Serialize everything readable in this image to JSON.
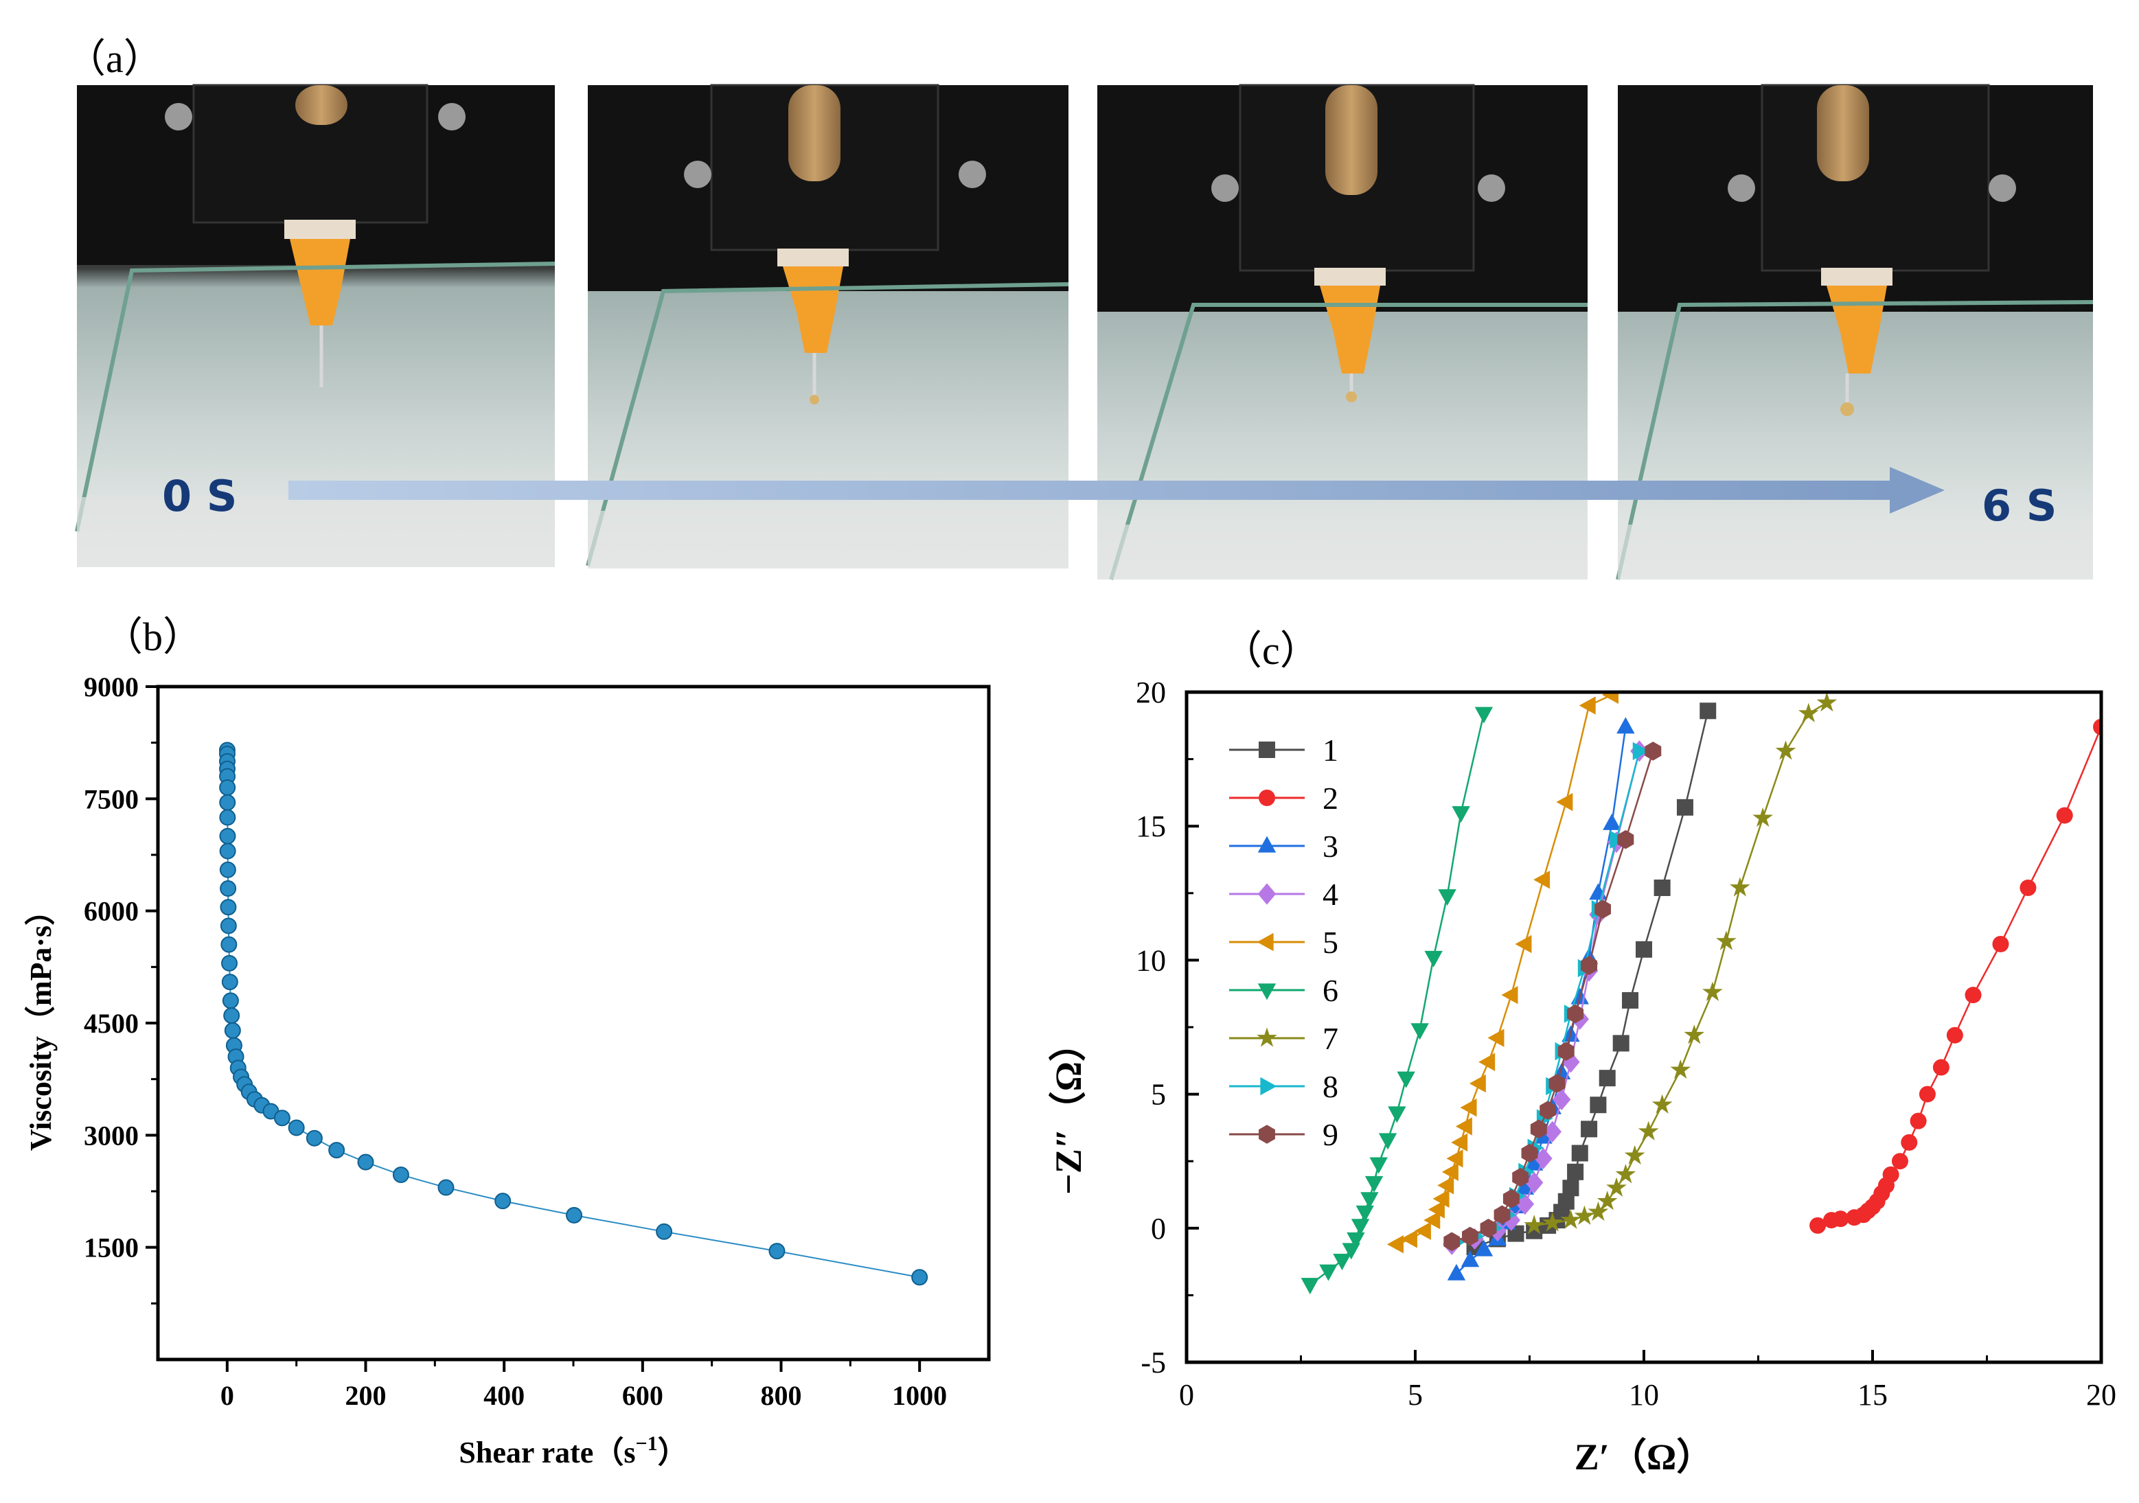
{
  "panel_labels": {
    "a": "（a）",
    "b": "（b）",
    "c": "（c）"
  },
  "photo_sequence": {
    "start_label": "0 S",
    "end_label": "6 S",
    "frame_count": 4,
    "arrow_color": "#9fb6d8",
    "label_color": "#163a78"
  },
  "chart_data": [
    {
      "id": "b",
      "type": "scatter",
      "title": "",
      "xlabel": "Shear rate（s",
      "xlabel_sup": "−1",
      "xlabel_close": "）",
      "ylabel": "Viscosity（mPa·s）",
      "xlim": [
        -100,
        1100
      ],
      "ylim": [
        0,
        9000
      ],
      "xticks": [
        0,
        200,
        400,
        600,
        800,
        1000
      ],
      "yticks": [
        1500,
        3000,
        4500,
        6000,
        7500,
        9000
      ],
      "marker_color": "#2a8cc4",
      "series": [
        {
          "name": "viscosity",
          "x": [
            0.1,
            0.13,
            0.16,
            0.2,
            0.25,
            0.32,
            0.4,
            0.5,
            0.63,
            0.79,
            1,
            1.26,
            1.58,
            2,
            2.51,
            3.16,
            3.98,
            5.01,
            6.31,
            7.94,
            10,
            12.6,
            15.8,
            20,
            25.1,
            31.6,
            39.8,
            50.1,
            63.1,
            79.4,
            100,
            126,
            158,
            200,
            251,
            316,
            398,
            501,
            631,
            794,
            1000
          ],
          "y": [
            8150,
            8100,
            8000,
            7900,
            7800,
            7650,
            7450,
            7250,
            7000,
            6800,
            6550,
            6300,
            6050,
            5800,
            5550,
            5300,
            5050,
            4800,
            4600,
            4400,
            4200,
            4050,
            3900,
            3780,
            3680,
            3580,
            3480,
            3400,
            3320,
            3230,
            3100,
            2960,
            2800,
            2640,
            2470,
            2300,
            2120,
            1930,
            1710,
            1450,
            1100
          ]
        }
      ]
    },
    {
      "id": "c",
      "type": "line",
      "title": "",
      "xlabel": "Z′（Ω）",
      "ylabel": "−Z″（Ω）",
      "xlim": [
        0,
        20
      ],
      "ylim": [
        -5,
        20
      ],
      "xticks": [
        0,
        5,
        10,
        15,
        20
      ],
      "yticks": [
        -5,
        0,
        5,
        10,
        15,
        20
      ],
      "legend_position": "top-left",
      "series": [
        {
          "name": "1",
          "color": "#4d4d4d",
          "marker": "square",
          "x": [
            6.3,
            6.8,
            7.2,
            7.6,
            7.9,
            8.1,
            8.2,
            8.3,
            8.4,
            8.5,
            8.6,
            8.8,
            9.0,
            9.2,
            9.5,
            9.7,
            10.0,
            10.4,
            10.9,
            11.4
          ],
          "y": [
            -0.7,
            -0.4,
            -0.2,
            -0.1,
            0.1,
            0.3,
            0.6,
            1.0,
            1.5,
            2.1,
            2.8,
            3.7,
            4.6,
            5.6,
            6.9,
            8.5,
            10.4,
            12.7,
            15.7,
            19.3
          ]
        },
        {
          "name": "2",
          "color": "#ee2a2a",
          "marker": "circle",
          "x": [
            13.8,
            14.1,
            14.3,
            14.6,
            14.8,
            14.9,
            15.0,
            15.1,
            15.2,
            15.3,
            15.4,
            15.6,
            15.8,
            16.0,
            16.2,
            16.5,
            16.8,
            17.2,
            17.8,
            18.4,
            19.2,
            20.0
          ],
          "y": [
            0.1,
            0.3,
            0.35,
            0.4,
            0.5,
            0.65,
            0.8,
            1.0,
            1.3,
            1.6,
            2.0,
            2.5,
            3.2,
            4.0,
            5.0,
            6.0,
            7.2,
            8.7,
            10.6,
            12.7,
            15.4,
            18.7
          ]
        },
        {
          "name": "3",
          "color": "#1f6fe0",
          "marker": "triangle-up",
          "x": [
            5.9,
            6.2,
            6.5,
            6.8,
            7.0,
            7.2,
            7.4,
            7.6,
            7.8,
            8.0,
            8.2,
            8.4,
            8.6,
            8.8,
            9.0,
            9.3,
            9.6
          ],
          "y": [
            -1.7,
            -1.2,
            -0.8,
            -0.4,
            0.2,
            0.8,
            1.5,
            2.4,
            3.4,
            4.5,
            5.8,
            7.2,
            8.6,
            10.1,
            12.5,
            15.1,
            18.7
          ]
        },
        {
          "name": "4",
          "color": "#b778e6",
          "marker": "diamond",
          "x": [
            5.8,
            6.3,
            6.8,
            7.1,
            7.4,
            7.6,
            7.8,
            8.0,
            8.2,
            8.4,
            8.6,
            8.8,
            9.0,
            9.4,
            9.9
          ],
          "y": [
            -0.6,
            -0.4,
            -0.1,
            0.3,
            0.9,
            1.7,
            2.6,
            3.6,
            4.8,
            6.2,
            7.8,
            9.6,
            11.7,
            14.4,
            17.8
          ]
        },
        {
          "name": "5",
          "color": "#d98e06",
          "marker": "triangle-left",
          "x": [
            4.6,
            4.9,
            5.2,
            5.4,
            5.5,
            5.6,
            5.7,
            5.8,
            5.9,
            6.0,
            6.1,
            6.2,
            6.4,
            6.6,
            6.8,
            7.1,
            7.4,
            7.8,
            8.3,
            8.8,
            9.3
          ],
          "y": [
            -0.6,
            -0.4,
            -0.1,
            0.3,
            0.7,
            1.1,
            1.6,
            2.1,
            2.6,
            3.2,
            3.8,
            4.5,
            5.4,
            6.2,
            7.1,
            8.7,
            10.6,
            13.0,
            15.9,
            19.5,
            19.9
          ]
        },
        {
          "name": "6",
          "color": "#12a870",
          "marker": "triangle-down",
          "x": [
            2.7,
            3.1,
            3.4,
            3.6,
            3.7,
            3.8,
            3.9,
            4.0,
            4.1,
            4.2,
            4.4,
            4.6,
            4.8,
            5.1,
            5.4,
            5.7,
            6.0,
            6.5
          ],
          "y": [
            -2.1,
            -1.6,
            -1.2,
            -0.8,
            -0.4,
            0.1,
            0.6,
            1.1,
            1.7,
            2.4,
            3.3,
            4.3,
            5.6,
            7.4,
            10.1,
            12.4,
            15.5,
            19.2
          ]
        },
        {
          "name": "7",
          "color": "#8a8a1a",
          "marker": "star",
          "x": [
            7.6,
            8.0,
            8.4,
            8.7,
            9.0,
            9.2,
            9.4,
            9.6,
            9.8,
            10.1,
            10.4,
            10.8,
            11.1,
            11.5,
            11.8,
            12.1,
            12.6,
            13.1,
            13.6,
            14.0
          ],
          "y": [
            0.1,
            0.2,
            0.3,
            0.45,
            0.6,
            1.0,
            1.5,
            2.0,
            2.7,
            3.6,
            4.6,
            5.9,
            7.2,
            8.8,
            10.7,
            12.7,
            15.3,
            17.8,
            19.2,
            19.6
          ]
        },
        {
          "name": "8",
          "color": "#18b8cc",
          "marker": "triangle-right",
          "x": [
            5.9,
            6.3,
            6.7,
            7.0,
            7.2,
            7.4,
            7.6,
            7.8,
            8.0,
            8.2,
            8.4,
            8.7,
            9.0,
            9.4,
            9.9
          ],
          "y": [
            -0.5,
            -0.3,
            0.0,
            0.5,
            1.2,
            2.1,
            3.0,
            4.1,
            5.3,
            6.6,
            8.0,
            9.7,
            11.9,
            14.5,
            17.8
          ]
        },
        {
          "name": "9",
          "color": "#8a4a4a",
          "marker": "hexagon",
          "x": [
            5.8,
            6.2,
            6.6,
            6.9,
            7.1,
            7.3,
            7.5,
            7.7,
            7.9,
            8.1,
            8.3,
            8.5,
            8.8,
            9.1,
            9.6,
            10.2
          ],
          "y": [
            -0.5,
            -0.3,
            0.0,
            0.5,
            1.1,
            1.9,
            2.8,
            3.7,
            4.4,
            5.4,
            6.6,
            8.0,
            9.8,
            11.9,
            14.5,
            17.8
          ]
        }
      ]
    }
  ]
}
